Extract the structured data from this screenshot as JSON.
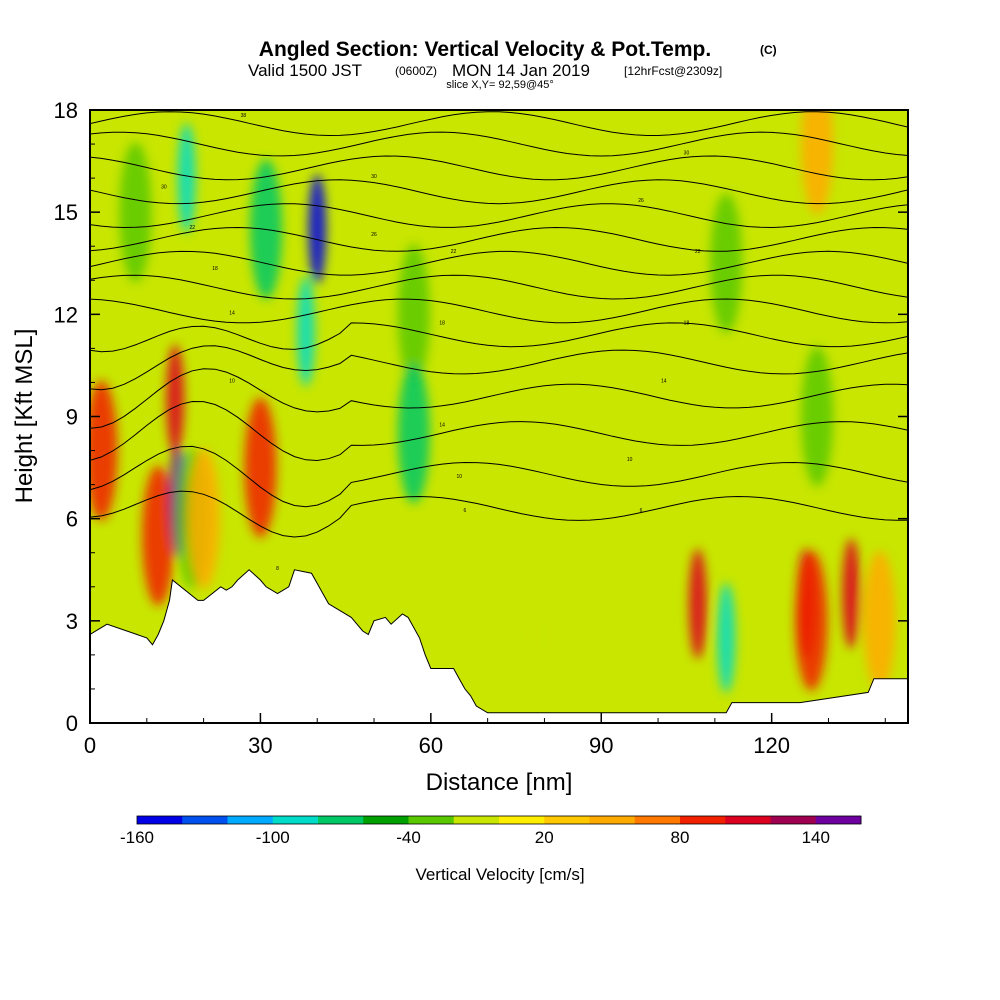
{
  "header": {
    "title": "Angled Section: Vertical Velocity & Pot.Temp.",
    "copyright_mark": "(C)",
    "valid_prefix": "Valid 1500 JST",
    "valid_utc": "(0600Z)",
    "valid_date": "MON 14 Jan 2019",
    "forecast": "[12hrFcst@2309z]",
    "slice": "slice X,Y= 92,59@45°"
  },
  "chart_data": {
    "type": "heatmap",
    "title": "Angled Section: Vertical Velocity & Pot.Temp.",
    "xlabel": "Distance [nm]",
    "ylabel": "Height [Kft MSL]",
    "xlim": [
      0,
      144
    ],
    "ylim": [
      0,
      18
    ],
    "x_ticks": [
      "0",
      "30",
      "60",
      "90",
      "120"
    ],
    "y_ticks": [
      "0",
      "3",
      "6",
      "9",
      "12",
      "15",
      "18"
    ],
    "colorbar": {
      "label": "Vertical Velocity [cm/s]",
      "tick_labels": [
        "-160",
        "-100",
        "-40",
        "20",
        "80",
        "140"
      ],
      "colors": [
        "#0000e6",
        "#0050f0",
        "#00aaff",
        "#00dcc8",
        "#00c864",
        "#00a000",
        "#5ac800",
        "#c8e600",
        "#ffee00",
        "#ffc800",
        "#ffaa00",
        "#ff7800",
        "#f02000",
        "#dc0020",
        "#a00050",
        "#6e00a0"
      ]
    },
    "terrain_profile": {
      "x": [
        0,
        3,
        10,
        11,
        12,
        13,
        14,
        14.5,
        19,
        20,
        23,
        24,
        25,
        26,
        28,
        30,
        31,
        33,
        35,
        36,
        39,
        40,
        41,
        42,
        44,
        46,
        47,
        48,
        49,
        50,
        52,
        53,
        55,
        56,
        58,
        59,
        60,
        64,
        65,
        66,
        67,
        68,
        70,
        72,
        75,
        90,
        105,
        112,
        113,
        125,
        137,
        138,
        144
      ],
      "y": [
        2.6,
        2.9,
        2.5,
        2.3,
        2.6,
        3.0,
        3.6,
        4.2,
        3.6,
        3.6,
        4.0,
        3.9,
        4.0,
        4.2,
        4.5,
        4.2,
        4.0,
        3.8,
        4.0,
        4.5,
        4.4,
        4.1,
        3.8,
        3.5,
        3.3,
        3.1,
        2.9,
        2.7,
        2.6,
        3.0,
        3.1,
        2.9,
        3.2,
        3.1,
        2.5,
        2.0,
        1.6,
        1.6,
        1.3,
        1.0,
        0.8,
        0.5,
        0.3,
        0.3,
        0.3,
        0.3,
        0.3,
        0.3,
        0.6,
        0.6,
        0.9,
        1.3,
        1.3
      ]
    },
    "vertical_velocity_cells": [
      {
        "x": 2,
        "y": 8.0,
        "value": 80
      },
      {
        "x": 12,
        "y": 5.5,
        "value": 80
      },
      {
        "x": 15,
        "y": 9.5,
        "value": 110
      },
      {
        "x": 15.5,
        "y": 6.5,
        "value": 140
      },
      {
        "x": 18,
        "y": 6.0,
        "value": -40
      },
      {
        "x": 20,
        "y": 6.0,
        "value": 50
      },
      {
        "x": 30,
        "y": 7.5,
        "value": 80
      },
      {
        "x": 8,
        "y": 15.0,
        "value": -40
      },
      {
        "x": 17,
        "y": 16.0,
        "value": -100
      },
      {
        "x": 31,
        "y": 14.5,
        "value": -70
      },
      {
        "x": 40,
        "y": 14.5,
        "value": -160
      },
      {
        "x": 38,
        "y": 11.5,
        "value": -100
      },
      {
        "x": 57,
        "y": 12.0,
        "value": -40
      },
      {
        "x": 57,
        "y": 8.5,
        "value": -70
      },
      {
        "x": 107,
        "y": 3.5,
        "value": 110
      },
      {
        "x": 112,
        "y": 2.5,
        "value": -100
      },
      {
        "x": 126,
        "y": 3.5,
        "value": 110
      },
      {
        "x": 134,
        "y": 3.8,
        "value": 110
      },
      {
        "x": 127,
        "y": 3.0,
        "value": 80
      },
      {
        "x": 139,
        "y": 3.0,
        "value": 50
      },
      {
        "x": 128,
        "y": 17.0,
        "value": 50
      },
      {
        "x": 112,
        "y": 13.5,
        "value": -40
      },
      {
        "x": 128,
        "y": 9.0,
        "value": -40
      },
      {
        "x": 80,
        "y": 2.5,
        "value": -10
      }
    ],
    "potential_temperature_labels": [
      {
        "x": 27,
        "y": 17.8,
        "text": "38"
      },
      {
        "x": 13,
        "y": 15.7,
        "text": "30"
      },
      {
        "x": 18,
        "y": 14.5,
        "text": "22"
      },
      {
        "x": 22,
        "y": 13.3,
        "text": "18"
      },
      {
        "x": 25,
        "y": 12.0,
        "text": "14"
      },
      {
        "x": 25,
        "y": 10.0,
        "text": "10"
      },
      {
        "x": 50,
        "y": 16.0,
        "text": "30"
      },
      {
        "x": 50,
        "y": 14.3,
        "text": "26"
      },
      {
        "x": 64,
        "y": 13.8,
        "text": "22"
      },
      {
        "x": 62,
        "y": 11.7,
        "text": "18"
      },
      {
        "x": 62,
        "y": 8.7,
        "text": "14"
      },
      {
        "x": 65,
        "y": 7.2,
        "text": "10"
      },
      {
        "x": 66,
        "y": 6.2,
        "text": "6"
      },
      {
        "x": 33,
        "y": 4.5,
        "text": "8"
      },
      {
        "x": 105,
        "y": 16.7,
        "text": "30"
      },
      {
        "x": 97,
        "y": 15.3,
        "text": "26"
      },
      {
        "x": 107,
        "y": 13.8,
        "text": "22"
      },
      {
        "x": 105,
        "y": 11.7,
        "text": "18"
      },
      {
        "x": 101,
        "y": 10.0,
        "text": "14"
      },
      {
        "x": 95,
        "y": 7.7,
        "text": "10"
      },
      {
        "x": 97,
        "y": 6.2,
        "text": "6"
      }
    ],
    "grid": false
  }
}
